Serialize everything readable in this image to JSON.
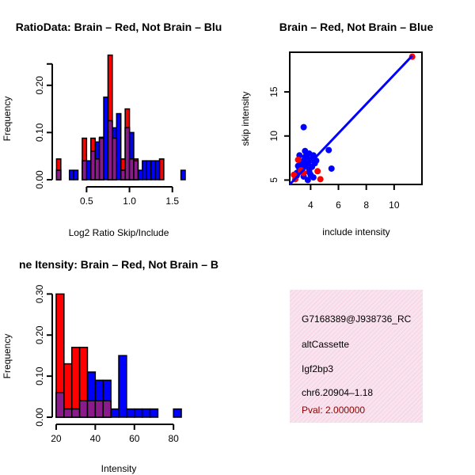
{
  "chart_data": [
    {
      "type": "bar",
      "title": "RatioData: Brain – Red, Not Brain – Blu",
      "xlabel": "Log2 Ratio Skip/Include",
      "ylabel": "Frequency",
      "xlim": [
        0.1,
        1.65
      ],
      "ylim": [
        0,
        0.26
      ],
      "xticks": [
        0.5,
        1.0,
        1.5
      ],
      "xtick_labels": [
        "0.5",
        "1.0",
        "1.5"
      ],
      "yticks": [
        0,
        0.1,
        0.2
      ],
      "ytick_labels": [
        "0.00",
        "0.10",
        "0.20"
      ],
      "bin_width": 0.05,
      "colors": {
        "red": "#ff0000",
        "blue": "#0000ff",
        "overlap": "#8b1a8b"
      },
      "series": [
        {
          "name": "Brain",
          "bins": [
            [
              0.15,
              0.044
            ],
            [
              0.45,
              0.088
            ],
            [
              0.55,
              0.088
            ],
            [
              0.6,
              0.044
            ],
            [
              0.65,
              0.088
            ],
            [
              0.75,
              0.264
            ],
            [
              0.8,
              0.088
            ],
            [
              0.9,
              0.044
            ],
            [
              0.95,
              0.15
            ],
            [
              1.0,
              0.044
            ],
            [
              1.05,
              0.044
            ],
            [
              1.35,
              0.044
            ]
          ]
        },
        {
          "name": "Not Brain",
          "bins": [
            [
              0.15,
              0.02
            ],
            [
              0.3,
              0.02
            ],
            [
              0.35,
              0.02
            ],
            [
              0.45,
              0.04
            ],
            [
              0.5,
              0.04
            ],
            [
              0.55,
              0.06
            ],
            [
              0.6,
              0.08
            ],
            [
              0.65,
              0.09
            ],
            [
              0.7,
              0.175
            ],
            [
              0.75,
              0.125
            ],
            [
              0.8,
              0.11
            ],
            [
              0.85,
              0.14
            ],
            [
              0.9,
              0.02
            ],
            [
              0.95,
              0.11
            ],
            [
              1.0,
              0.1
            ],
            [
              1.05,
              0.04
            ],
            [
              1.1,
              0.02
            ],
            [
              1.15,
              0.04
            ],
            [
              1.2,
              0.04
            ],
            [
              1.25,
              0.04
            ],
            [
              1.3,
              0.04
            ],
            [
              1.6,
              0.02
            ]
          ]
        }
      ]
    },
    {
      "type": "scatter",
      "title": "Brain – Red, Not Brain – Blue",
      "xlabel": "include intensity",
      "ylabel": "skip intensity",
      "xlim": [
        2.5,
        12
      ],
      "ylim": [
        4.5,
        19.5
      ],
      "xticks": [
        4,
        6,
        8,
        10
      ],
      "xtick_labels": [
        "4",
        "6",
        "8",
        "10"
      ],
      "yticks": [
        5,
        10,
        15
      ],
      "ytick_labels": [
        "5",
        "10",
        "15"
      ],
      "fit_line": {
        "color": "#0000ff",
        "from": [
          2.5,
          4.5
        ],
        "to": [
          11.3,
          19.1
        ]
      },
      "series": [
        {
          "name": "Not Brain",
          "color": "#0000ff",
          "points": [
            [
              3.0,
              5.8
            ],
            [
              3.2,
              6.3
            ],
            [
              3.3,
              7.0
            ],
            [
              3.4,
              6.0
            ],
            [
              3.5,
              11.0
            ],
            [
              3.5,
              5.4
            ],
            [
              3.6,
              6.6
            ],
            [
              3.7,
              7.6
            ],
            [
              3.8,
              6.9
            ],
            [
              3.9,
              5.9
            ],
            [
              4.0,
              7.3
            ],
            [
              3.6,
              8.3
            ],
            [
              3.2,
              7.8
            ],
            [
              3.9,
              6.2
            ],
            [
              4.1,
              6.5
            ],
            [
              4.2,
              5.3
            ],
            [
              4.2,
              7.8
            ],
            [
              3.6,
              7.6
            ],
            [
              5.3,
              8.4
            ],
            [
              5.5,
              6.3
            ],
            [
              4.0,
              5.6
            ],
            [
              3.4,
              6.8
            ],
            [
              3.7,
              8.0
            ],
            [
              4.3,
              6.9
            ],
            [
              3.1,
              6.6
            ],
            [
              3.0,
              5.5
            ],
            [
              3.8,
              5.0
            ],
            [
              4.4,
              7.2
            ],
            [
              3.5,
              7.2
            ],
            [
              3.9,
              8.0
            ]
          ]
        },
        {
          "name": "Brain",
          "color": "#ff0000",
          "points": [
            [
              2.8,
              5.6
            ],
            [
              2.9,
              5.1
            ],
            [
              3.1,
              7.3
            ],
            [
              3.5,
              5.8
            ],
            [
              4.5,
              6.0
            ],
            [
              4.7,
              5.1
            ],
            [
              11.3,
              19.0
            ],
            [
              3.3,
              6.1
            ]
          ]
        }
      ]
    },
    {
      "type": "bar",
      "title": "ne Itensity: Brain – Red, Not Brain – B",
      "xlabel": "Intensity",
      "ylabel": "Frequency",
      "xlim": [
        18,
        86
      ],
      "ylim": [
        0,
        0.32
      ],
      "xticks": [
        20,
        40,
        60,
        80
      ],
      "xtick_labels": [
        "20",
        "40",
        "60",
        "80"
      ],
      "yticks": [
        0,
        0.1,
        0.2,
        0.3
      ],
      "ytick_labels": [
        "0.00",
        "0.10",
        "0.20",
        "0.30"
      ],
      "bin_width": 4,
      "colors": {
        "red": "#ff0000",
        "blue": "#0000ff",
        "overlap": "#8b1a8b"
      },
      "series": [
        {
          "name": "Brain",
          "bins": [
            [
              20,
              0.3
            ],
            [
              24,
              0.13
            ],
            [
              28,
              0.17
            ],
            [
              32,
              0.17
            ],
            [
              36,
              0.04
            ],
            [
              40,
              0.04
            ],
            [
              44,
              0.04
            ]
          ]
        },
        {
          "name": "Not Brain",
          "bins": [
            [
              20,
              0.06
            ],
            [
              24,
              0.02
            ],
            [
              28,
              0.02
            ],
            [
              32,
              0.04
            ],
            [
              36,
              0.11
            ],
            [
              40,
              0.09
            ],
            [
              44,
              0.09
            ],
            [
              48,
              0.02
            ],
            [
              52,
              0.15
            ],
            [
              56,
              0.02
            ],
            [
              60,
              0.02
            ],
            [
              64,
              0.02
            ],
            [
              68,
              0.02
            ],
            [
              80,
              0.02
            ]
          ]
        }
      ]
    }
  ],
  "info_panel": {
    "id": "G7168389@J938736_RC",
    "type": "altCassette",
    "gene": "Igf2bp3",
    "location": "chr6.20904–1.18",
    "pval": "Pval: 2.000000",
    "pval_color": "#8b0000",
    "bg_color": "#f6d6e6"
  }
}
